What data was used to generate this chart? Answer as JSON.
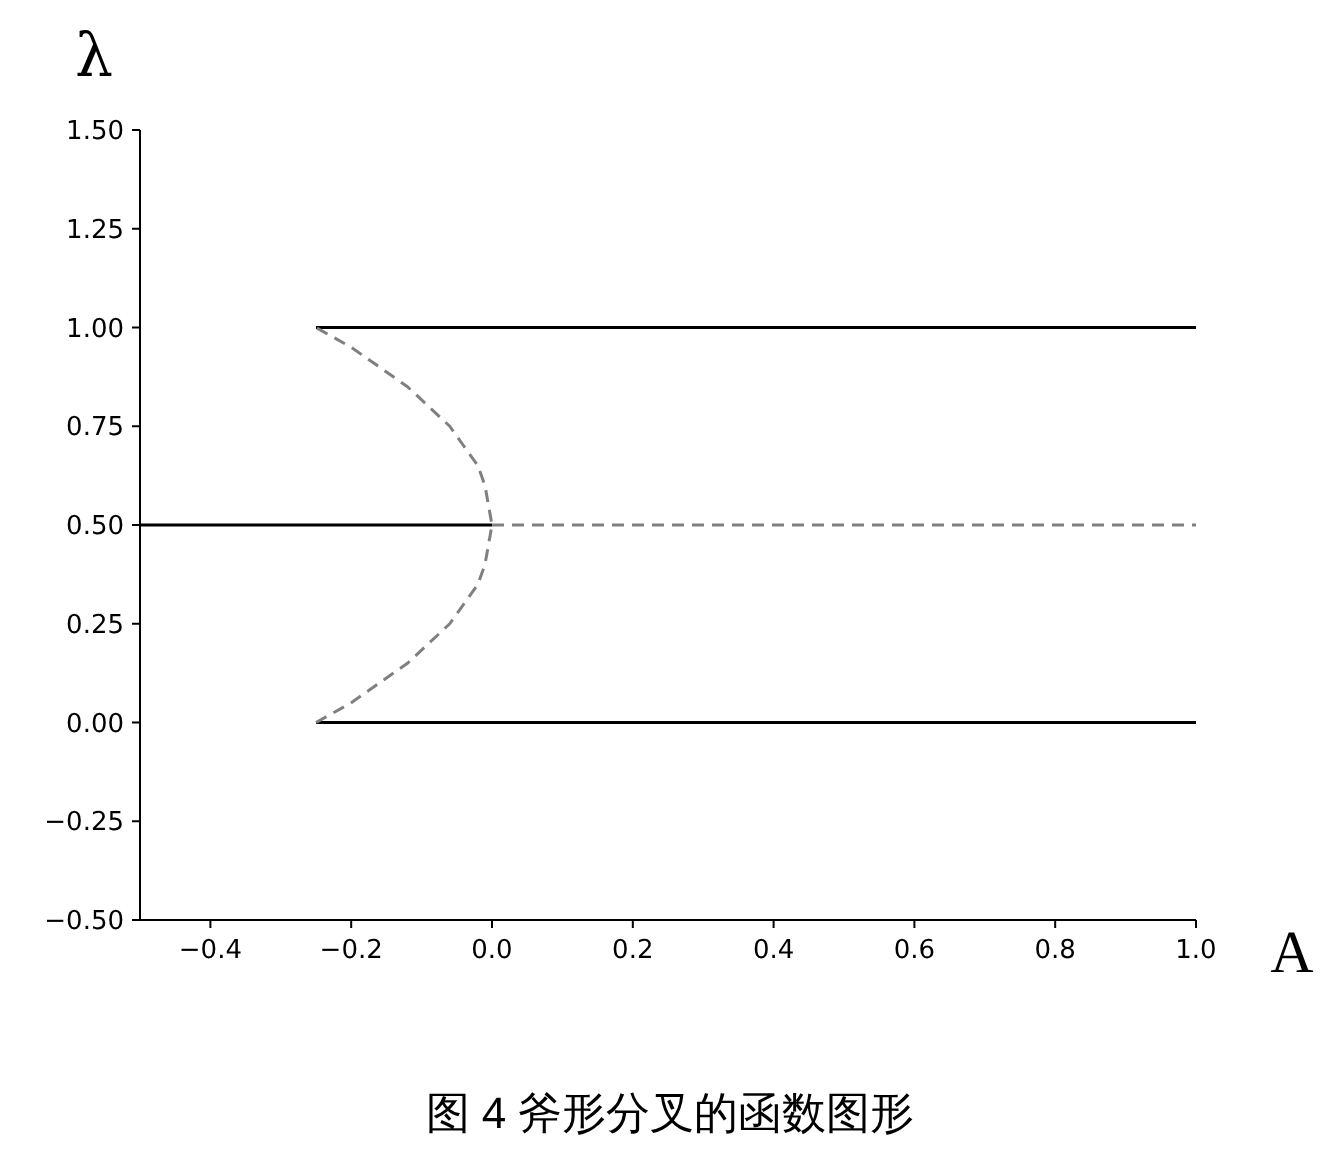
{
  "chart_data": {
    "type": "line",
    "xlabel": "A",
    "ylabel": "λ",
    "annotations": [
      "图 4 斧形分叉的函数图形"
    ],
    "xlim": [
      -0.5,
      1.0
    ],
    "ylim": [
      -0.5,
      1.5
    ],
    "xticks": [
      {
        "value": -0.4,
        "label": "−0.4"
      },
      {
        "value": -0.2,
        "label": "−0.2"
      },
      {
        "value": 0.0,
        "label": "0.0"
      },
      {
        "value": 0.2,
        "label": "0.2"
      },
      {
        "value": 0.4,
        "label": "0.4"
      },
      {
        "value": 0.6,
        "label": "0.6"
      },
      {
        "value": 0.8,
        "label": "0.8"
      },
      {
        "value": 1.0,
        "label": "1.0"
      }
    ],
    "yticks": [
      {
        "value": -0.5,
        "label": "−0.50"
      },
      {
        "value": -0.25,
        "label": "−0.25"
      },
      {
        "value": 0.0,
        "label": "0.00"
      },
      {
        "value": 0.25,
        "label": "0.25"
      },
      {
        "value": 0.5,
        "label": "0.50"
      },
      {
        "value": 0.75,
        "label": "0.75"
      },
      {
        "value": 1.0,
        "label": "1.00"
      },
      {
        "value": 1.25,
        "label": "1.25"
      },
      {
        "value": 1.5,
        "label": "1.50"
      }
    ],
    "series": [
      {
        "color": "#000000",
        "line_style": "solid",
        "x": [
          -0.5,
          0.0
        ],
        "values": [
          0.5,
          0.5
        ]
      },
      {
        "color": "#808080",
        "line_style": "dashed",
        "x": [
          0.0,
          1.0
        ],
        "values": [
          0.5,
          0.5
        ]
      },
      {
        "color": "#000000",
        "line_style": "solid",
        "x": [
          -0.25,
          1.0
        ],
        "values": [
          1.0,
          1.0
        ]
      },
      {
        "color": "#000000",
        "line_style": "solid",
        "x": [
          -0.25,
          1.0
        ],
        "values": [
          0.0,
          0.0
        ]
      },
      {
        "color": "#808080",
        "line_style": "dashed",
        "x": [
          -0.25,
          -0.2,
          -0.16,
          -0.12,
          -0.09,
          -0.06,
          -0.04,
          -0.02,
          -0.01,
          0.0,
          -0.01,
          -0.02,
          -0.04,
          -0.06,
          -0.09,
          -0.12,
          -0.16,
          -0.2,
          -0.25
        ],
        "values": [
          0.0,
          0.05,
          0.1,
          0.15,
          0.2,
          0.25,
          0.3,
          0.35,
          0.4,
          0.5,
          0.6,
          0.65,
          0.7,
          0.75,
          0.8,
          0.85,
          0.9,
          0.95,
          1.0
        ]
      }
    ]
  }
}
